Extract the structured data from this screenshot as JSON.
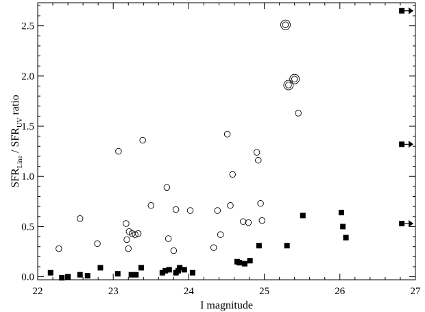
{
  "chart_data": {
    "type": "scatter",
    "xlabel": "I magnitude",
    "ylabel": {
      "part1": "SFR",
      "sub1": "Line",
      "sep": " / SFR",
      "sub2": "UV",
      "part2": " ratio"
    },
    "xlim": [
      22,
      27
    ],
    "ylim": [
      -0.03,
      2.73
    ],
    "x_ticks": [
      22,
      23,
      24,
      25,
      26,
      27
    ],
    "x_tick_labels": [
      "22",
      "23",
      "24",
      "25",
      "26",
      "27"
    ],
    "y_ticks": [
      0.0,
      0.5,
      1.0,
      1.5,
      2.0,
      2.5
    ],
    "y_tick_labels": [
      "0.0",
      "0.5",
      "1.0",
      "1.5",
      "2.0",
      "2.5"
    ],
    "grid": false,
    "legend": "none",
    "series": [
      {
        "marker": "open-circle",
        "points": [
          [
            22.28,
            0.28
          ],
          [
            22.56,
            0.58
          ],
          [
            22.79,
            0.33
          ],
          [
            23.07,
            1.25
          ],
          [
            23.17,
            0.53
          ],
          [
            23.18,
            0.37
          ],
          [
            23.2,
            0.28
          ],
          [
            23.21,
            0.45
          ],
          [
            23.25,
            0.43
          ],
          [
            23.29,
            0.42
          ],
          [
            23.33,
            0.43
          ],
          [
            23.39,
            1.36
          ],
          [
            23.5,
            0.71
          ],
          [
            23.71,
            0.89
          ],
          [
            23.73,
            0.38
          ],
          [
            23.8,
            0.26
          ],
          [
            23.83,
            0.67
          ],
          [
            24.02,
            0.66
          ],
          [
            24.33,
            0.29
          ],
          [
            24.38,
            0.66
          ],
          [
            24.42,
            0.42
          ],
          [
            24.51,
            1.42
          ],
          [
            24.55,
            0.71
          ],
          [
            24.58,
            1.02
          ],
          [
            24.72,
            0.55
          ],
          [
            24.79,
            0.54
          ],
          [
            24.9,
            1.24
          ],
          [
            24.92,
            1.16
          ],
          [
            24.95,
            0.73
          ],
          [
            24.97,
            0.56
          ],
          [
            25.45,
            1.63
          ]
        ]
      },
      {
        "marker": "double-circle",
        "points": [
          [
            25.28,
            2.51
          ],
          [
            25.32,
            1.91
          ],
          [
            25.4,
            1.97
          ]
        ]
      },
      {
        "marker": "filled-square",
        "points": [
          [
            22.17,
            0.04
          ],
          [
            22.32,
            -0.01
          ],
          [
            22.4,
            0.0
          ],
          [
            22.56,
            0.02
          ],
          [
            22.66,
            0.01
          ],
          [
            22.83,
            0.09
          ],
          [
            23.06,
            0.03
          ],
          [
            23.24,
            0.02
          ],
          [
            23.3,
            0.02
          ],
          [
            23.37,
            0.09
          ],
          [
            23.65,
            0.04
          ],
          [
            23.69,
            0.06
          ],
          [
            23.74,
            0.07
          ],
          [
            23.83,
            0.04
          ],
          [
            23.86,
            0.06
          ],
          [
            23.88,
            0.09
          ],
          [
            23.94,
            0.07
          ],
          [
            24.05,
            0.04
          ],
          [
            24.64,
            0.15
          ],
          [
            24.67,
            0.14
          ],
          [
            24.74,
            0.13
          ],
          [
            24.81,
            0.16
          ],
          [
            24.93,
            0.31
          ],
          [
            25.3,
            0.31
          ],
          [
            25.51,
            0.61
          ],
          [
            26.02,
            0.64
          ],
          [
            26.04,
            0.5
          ],
          [
            26.08,
            0.39
          ]
        ]
      },
      {
        "marker": "square-with-arrow",
        "points": [
          [
            26.82,
            2.65
          ],
          [
            26.82,
            1.32
          ],
          [
            26.82,
            0.53
          ]
        ]
      }
    ]
  }
}
